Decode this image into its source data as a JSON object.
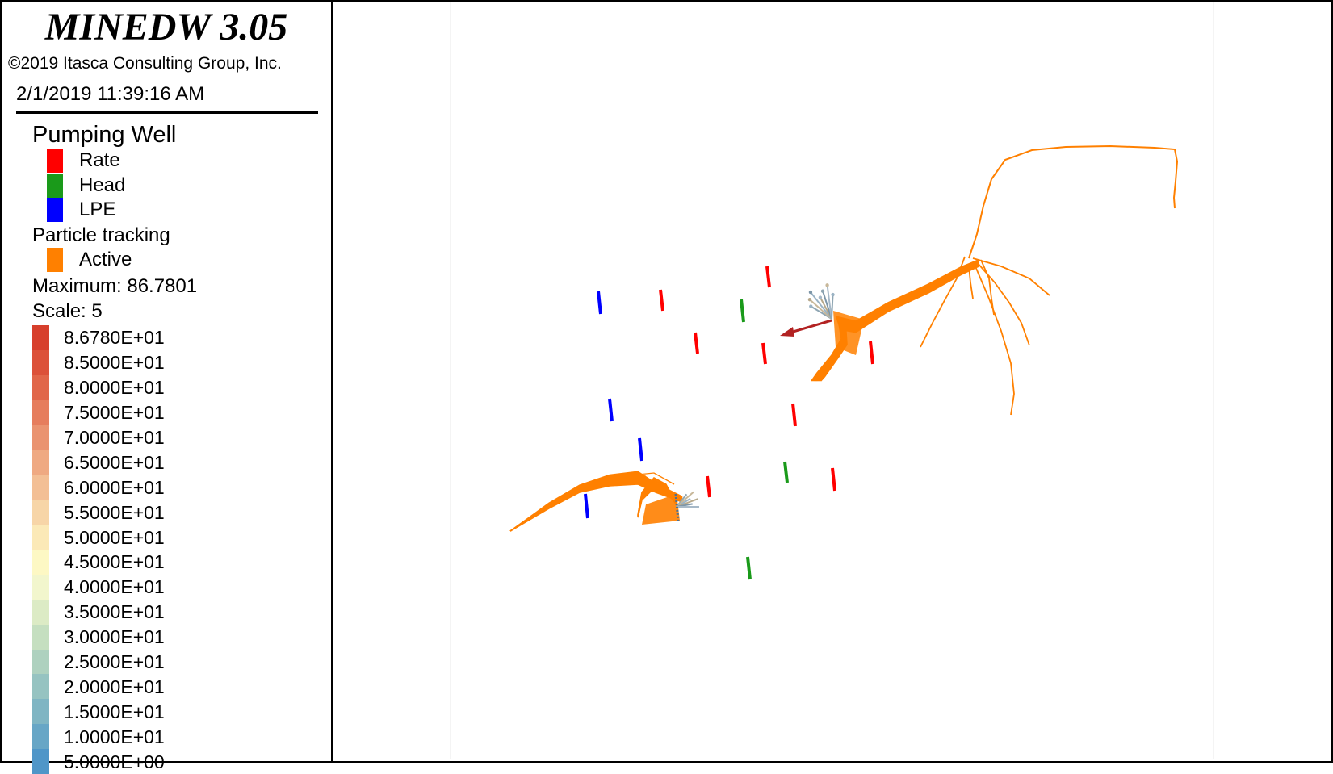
{
  "app": {
    "title": "MINEDW 3.05",
    "copyright": "©2019 Itasca Consulting Group, Inc.",
    "timestamp": "2/1/2019 11:39:16 AM"
  },
  "legend": {
    "pumping_well": {
      "title": "Pumping Well",
      "items": [
        {
          "label": "Rate",
          "color": "#ff0000"
        },
        {
          "label": "Head",
          "color": "#1a9a1a"
        },
        {
          "label": "LPE",
          "color": "#0000ff"
        }
      ]
    },
    "particle_tracking": {
      "title": "Particle tracking",
      "items": [
        {
          "label": "Active",
          "color": "#ff8000"
        }
      ]
    },
    "maximum": "Maximum: 86.7801",
    "scale": "Scale: 5",
    "colorbar": [
      {
        "label": "8.6780E+01",
        "color": "#d73f2c"
      },
      {
        "label": "8.5000E+01",
        "color": "#dc5139"
      },
      {
        "label": "8.0000E+01",
        "color": "#e16649"
      },
      {
        "label": "7.5000E+01",
        "color": "#e67d5d"
      },
      {
        "label": "7.0000E+01",
        "color": "#ea9370"
      },
      {
        "label": "6.5000E+01",
        "color": "#efa982"
      },
      {
        "label": "6.0000E+01",
        "color": "#f3bf95"
      },
      {
        "label": "5.5000E+01",
        "color": "#f7d5a7"
      },
      {
        "label": "5.0000E+01",
        "color": "#fbe9b7"
      },
      {
        "label": "4.5000E+01",
        "color": "#fdf8c4"
      },
      {
        "label": "4.0000E+01",
        "color": "#f2f6cd"
      },
      {
        "label": "3.5000E+01",
        "color": "#dcebc5"
      },
      {
        "label": "3.0000E+01",
        "color": "#c5dfc0"
      },
      {
        "label": "2.5000E+01",
        "color": "#aed1bf"
      },
      {
        "label": "2.0000E+01",
        "color": "#96c3c1"
      },
      {
        "label": "1.5000E+01",
        "color": "#7fb5c3"
      },
      {
        "label": "1.0000E+01",
        "color": "#67a6c6"
      },
      {
        "label": "5.0000E+00",
        "color": "#4f96c8"
      }
    ]
  },
  "wells": [
    {
      "type": "Rate",
      "color": "#ff0000"
    },
    {
      "type": "Rate",
      "color": "#ff0000"
    },
    {
      "type": "Rate",
      "color": "#ff0000"
    },
    {
      "type": "Rate",
      "color": "#ff0000"
    },
    {
      "type": "Rate",
      "color": "#ff0000"
    },
    {
      "type": "Rate",
      "color": "#ff0000"
    },
    {
      "type": "Rate",
      "color": "#ff0000"
    },
    {
      "type": "Rate",
      "color": "#ff0000"
    },
    {
      "type": "Head",
      "color": "#1a9a1a"
    },
    {
      "type": "Head",
      "color": "#1a9a1a"
    },
    {
      "type": "Head",
      "color": "#1a9a1a"
    },
    {
      "type": "LPE",
      "color": "#0000ff"
    },
    {
      "type": "LPE",
      "color": "#0000ff"
    },
    {
      "type": "LPE",
      "color": "#0000ff"
    },
    {
      "type": "LPE",
      "color": "#0000ff"
    }
  ],
  "particle_color": "#ff8000",
  "vector_color": "#b22222"
}
